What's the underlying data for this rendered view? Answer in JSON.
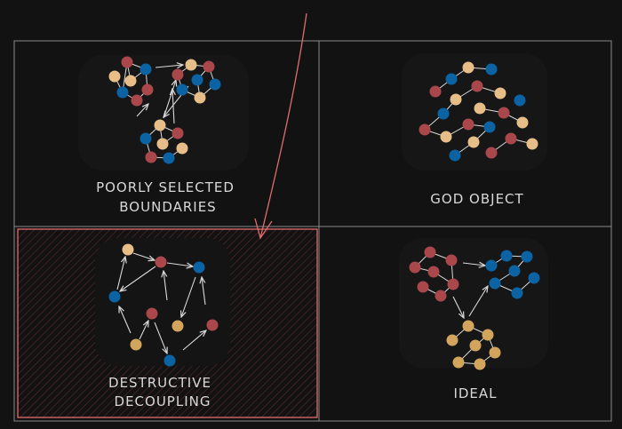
{
  "panels": [
    {
      "id": "poorly-selected-boundaries",
      "label_lines": [
        "POORLY SELECTED",
        "BOUNDARIES"
      ]
    },
    {
      "id": "god-object",
      "label_lines": [
        "GOD OBJECT"
      ]
    },
    {
      "id": "destructive-decoupling",
      "label_lines": [
        "DESTRUCTIVE",
        "DECOUPLING"
      ],
      "highlighted": true
    },
    {
      "id": "ideal",
      "label_lines": [
        "IDEAL"
      ]
    }
  ],
  "colors": {
    "background": "#121212",
    "grid_line": "#8a8a8a",
    "highlight": "#e06c6c",
    "node_red": "#a9474a",
    "node_blue": "#0b63a3",
    "node_tan": "#e7bd88",
    "node_gold": "#d3a55c",
    "edge": "#d9d9d9"
  }
}
